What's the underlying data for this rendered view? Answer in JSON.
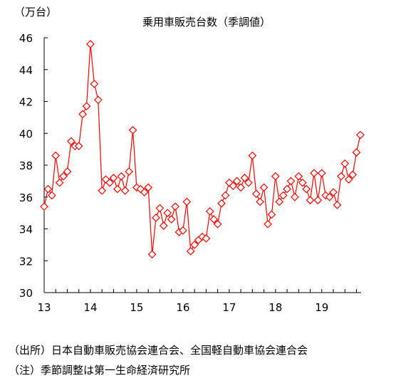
{
  "chart_data": {
    "type": "line",
    "title": "乗用車販売台数（季調値）",
    "unit_label": "（万台）",
    "ylabel": "",
    "xlabel": "",
    "ylim": [
      30,
      46
    ],
    "yticks": [
      30,
      32,
      34,
      36,
      38,
      40,
      42,
      44,
      46
    ],
    "xlim": [
      13,
      19.85
    ],
    "xticks": [
      "13",
      "14",
      "15",
      "16",
      "17",
      "18",
      "19"
    ],
    "grid": false,
    "legend": "none",
    "series": [
      {
        "color": "#ff0000",
        "marker": "diamond",
        "start": 13.0,
        "step": 0.08333,
        "values": [
          35.4,
          36.5,
          36.1,
          38.6,
          36.9,
          37.3,
          37.6,
          39.5,
          39.2,
          39.2,
          41.2,
          41.7,
          45.6,
          43.1,
          42.1,
          36.4,
          37.1,
          36.9,
          37.2,
          36.5,
          37.3,
          36.4,
          37.6,
          40.2,
          36.6,
          36.5,
          36.3,
          36.6,
          32.4,
          34.7,
          35.3,
          34.2,
          35.0,
          34.6,
          35.4,
          33.8,
          33.9,
          35.7,
          32.6,
          33.0,
          33.3,
          33.5,
          33.4,
          35.1,
          34.6,
          34.3,
          35.6,
          36.1,
          36.9,
          36.7,
          37.0,
          36.6,
          37.2,
          36.9,
          38.6,
          36.2,
          35.7,
          36.6,
          34.3,
          34.9,
          37.3,
          35.7,
          36.1,
          36.5,
          37.0,
          36.0,
          37.3,
          36.9,
          36.5,
          35.8,
          37.5,
          35.8,
          37.5,
          36.1,
          36.0,
          36.3,
          35.5,
          37.3,
          38.1,
          37.1,
          37.4,
          38.8,
          39.9
        ]
      }
    ]
  },
  "notes": {
    "source": "（出所）日本自動車販売協会連合会、全国軽自動車協会連合会",
    "note": "（注）季節調整は第一生命経済研究所"
  },
  "colors": {
    "line": "#ff0000",
    "marker_fill": "#ffffff",
    "axis": "#000000"
  }
}
